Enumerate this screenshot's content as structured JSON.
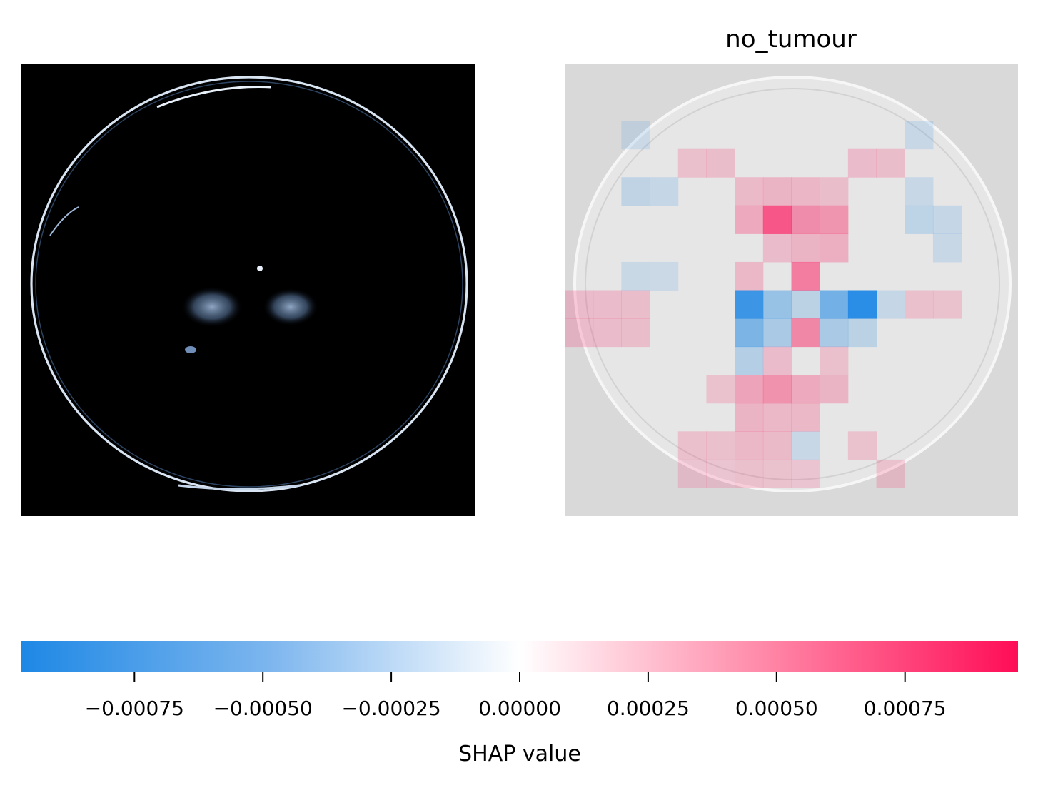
{
  "chart_data": [
    {
      "type": "image",
      "title": "",
      "content": "original brain MRI slice (axial), dark background with bright skull contour",
      "colormap": "bone"
    },
    {
      "type": "heatmap",
      "title": "no_tumour",
      "grid": [
        16,
        16
      ],
      "colors": {
        "negative": "#1e88e5",
        "zero": "#ffffff",
        "positive": "#ff0d57"
      },
      "background_image": "grayscale MRI slice",
      "cells": [
        {
          "row": 2,
          "col": 2,
          "value": -2e-05
        },
        {
          "row": 2,
          "col": 12,
          "value": -4e-05
        },
        {
          "row": 3,
          "col": 4,
          "value": 6e-05
        },
        {
          "row": 3,
          "col": 5,
          "value": 7e-05
        },
        {
          "row": 3,
          "col": 10,
          "value": 8e-05
        },
        {
          "row": 3,
          "col": 11,
          "value": 7e-05
        },
        {
          "row": 4,
          "col": 2,
          "value": -8e-05
        },
        {
          "row": 4,
          "col": 3,
          "value": -5e-05
        },
        {
          "row": 4,
          "col": 6,
          "value": 9e-05
        },
        {
          "row": 4,
          "col": 7,
          "value": 0.00012
        },
        {
          "row": 4,
          "col": 8,
          "value": 0.00011
        },
        {
          "row": 4,
          "col": 9,
          "value": 7e-05
        },
        {
          "row": 4,
          "col": 12,
          "value": -4e-05
        },
        {
          "row": 5,
          "col": 6,
          "value": 0.00018
        },
        {
          "row": 5,
          "col": 7,
          "value": 0.0006
        },
        {
          "row": 5,
          "col": 8,
          "value": 0.00032
        },
        {
          "row": 5,
          "col": 9,
          "value": 0.00028
        },
        {
          "row": 5,
          "col": 12,
          "value": -9e-05
        },
        {
          "row": 5,
          "col": 13,
          "value": -5e-05
        },
        {
          "row": 6,
          "col": 7,
          "value": 8e-05
        },
        {
          "row": 6,
          "col": 8,
          "value": 0.00012
        },
        {
          "row": 6,
          "col": 9,
          "value": 0.00015
        },
        {
          "row": 6,
          "col": 13,
          "value": -4e-05
        },
        {
          "row": 7,
          "col": 6,
          "value": 0.0001
        },
        {
          "row": 7,
          "col": 8,
          "value": 0.0004
        },
        {
          "row": 7,
          "col": 2,
          "value": -3e-05
        },
        {
          "row": 7,
          "col": 3,
          "value": -2e-05
        },
        {
          "row": 8,
          "col": 0,
          "value": 8e-05
        },
        {
          "row": 8,
          "col": 1,
          "value": 8e-05
        },
        {
          "row": 8,
          "col": 2,
          "value": 7e-05
        },
        {
          "row": 8,
          "col": 6,
          "value": -0.0008
        },
        {
          "row": 8,
          "col": 7,
          "value": -0.0003
        },
        {
          "row": 8,
          "col": 8,
          "value": -0.0001
        },
        {
          "row": 8,
          "col": 9,
          "value": -0.0005
        },
        {
          "row": 8,
          "col": 10,
          "value": -0.0009
        },
        {
          "row": 8,
          "col": 11,
          "value": -5e-05
        },
        {
          "row": 8,
          "col": 12,
          "value": 6e-05
        },
        {
          "row": 8,
          "col": 13,
          "value": 5e-05
        },
        {
          "row": 9,
          "col": 0,
          "value": 8e-05
        },
        {
          "row": 9,
          "col": 1,
          "value": 8e-05
        },
        {
          "row": 9,
          "col": 2,
          "value": 7e-05
        },
        {
          "row": 9,
          "col": 6,
          "value": -0.00045
        },
        {
          "row": 9,
          "col": 7,
          "value": -0.0002
        },
        {
          "row": 9,
          "col": 8,
          "value": 0.00035
        },
        {
          "row": 9,
          "col": 9,
          "value": -0.0002
        },
        {
          "row": 9,
          "col": 10,
          "value": -0.0001
        },
        {
          "row": 10,
          "col": 6,
          "value": -0.00015
        },
        {
          "row": 10,
          "col": 7,
          "value": 8e-05
        },
        {
          "row": 10,
          "col": 9,
          "value": 6e-05
        },
        {
          "row": 11,
          "col": 5,
          "value": 5e-05
        },
        {
          "row": 11,
          "col": 6,
          "value": 0.0002
        },
        {
          "row": 11,
          "col": 7,
          "value": 0.0003
        },
        {
          "row": 11,
          "col": 8,
          "value": 0.00018
        },
        {
          "row": 11,
          "col": 9,
          "value": 0.00012
        },
        {
          "row": 12,
          "col": 6,
          "value": 0.00012
        },
        {
          "row": 12,
          "col": 7,
          "value": 0.0001
        },
        {
          "row": 12,
          "col": 8,
          "value": 0.0001
        },
        {
          "row": 13,
          "col": 4,
          "value": 6e-05
        },
        {
          "row": 13,
          "col": 5,
          "value": 6e-05
        },
        {
          "row": 13,
          "col": 6,
          "value": 0.0001
        },
        {
          "row": 13,
          "col": 7,
          "value": 9e-05
        },
        {
          "row": 13,
          "col": 8,
          "value": -4e-05
        },
        {
          "row": 13,
          "col": 10,
          "value": 5e-05
        },
        {
          "row": 14,
          "col": 4,
          "value": 4e-05
        },
        {
          "row": 14,
          "col": 5,
          "value": 4e-05
        },
        {
          "row": 14,
          "col": 6,
          "value": 6e-05
        },
        {
          "row": 14,
          "col": 7,
          "value": 5e-05
        },
        {
          "row": 14,
          "col": 8,
          "value": 4e-05
        },
        {
          "row": 14,
          "col": 11,
          "value": 5e-05
        }
      ]
    }
  ],
  "colorbar": {
    "label": "SHAP value",
    "min": -0.00097,
    "max": 0.00097,
    "ticks": [
      {
        "value": -0.00075,
        "label": "−0.00075"
      },
      {
        "value": -0.0005,
        "label": "−0.00050"
      },
      {
        "value": -0.00025,
        "label": "−0.00025"
      },
      {
        "value": 0.0,
        "label": "0.00000"
      },
      {
        "value": 0.00025,
        "label": "0.00025"
      },
      {
        "value": 0.0005,
        "label": "0.00050"
      },
      {
        "value": 0.00075,
        "label": "0.00075"
      }
    ]
  }
}
